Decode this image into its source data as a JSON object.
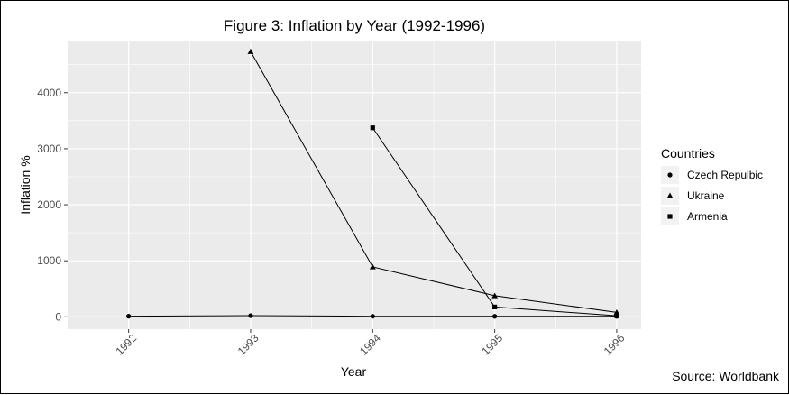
{
  "chart_data": {
    "type": "line",
    "title": "Figure 3: Inflation by Year (1992-1996)",
    "xlabel": "Year",
    "ylabel": "Inflation %",
    "categories": [
      "1992",
      "1993",
      "1994",
      "1995",
      "1996"
    ],
    "xlim": [
      1991.5,
      1996.2
    ],
    "ylim": [
      -220,
      4930
    ],
    "yticks": [
      0,
      1000,
      2000,
      3000,
      4000
    ],
    "grid": true,
    "legend_title": "Countries",
    "legend_position": "right",
    "series": [
      {
        "name": "Czech Repulbic",
        "marker": "circle",
        "x": [
          1992,
          1993,
          1994,
          1995,
          1996
        ],
        "values": [
          11,
          21,
          10,
          9,
          9
        ]
      },
      {
        "name": "Ukraine",
        "marker": "triangle",
        "x": [
          1993,
          1994,
          1995,
          1996
        ],
        "values": [
          4735,
          891,
          377,
          80
        ]
      },
      {
        "name": "Armenia",
        "marker": "square",
        "x": [
          1994,
          1995,
          1996
        ],
        "values": [
          3373,
          176,
          19
        ]
      }
    ],
    "source_note": "Source: Worldbank",
    "colors": {
      "panel": "#ebebeb",
      "grid": "#ffffff",
      "line": "#000000",
      "text": "#4d4d4d"
    }
  }
}
